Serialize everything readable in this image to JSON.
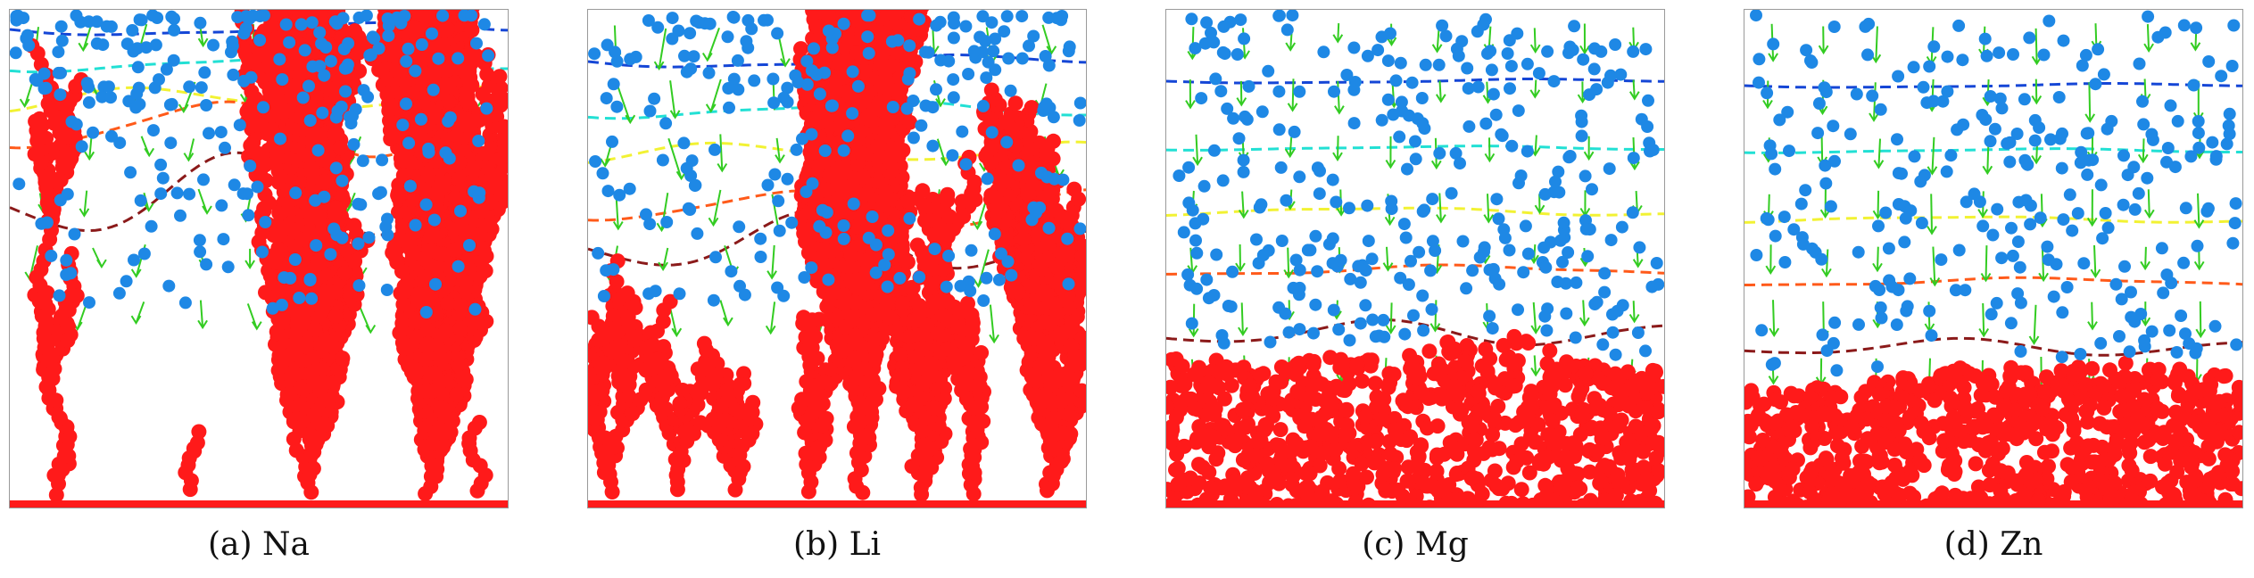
{
  "colors": {
    "deposit": "#ff1a1a",
    "ion": "#1e88e5",
    "arrow": "#33cc22",
    "contours": [
      "#1546d6",
      "#22e0d4",
      "#f2f233",
      "#ff5a1a",
      "#8b1a1a"
    ]
  },
  "panels": [
    {
      "caption": "(a) Na",
      "morphology": "dendritic-sparse"
    },
    {
      "caption": "(b) Li",
      "morphology": "dendritic-dense"
    },
    {
      "caption": "(c) Mg",
      "morphology": "compact"
    },
    {
      "caption": "(d) Zn",
      "morphology": "compact"
    }
  ]
}
